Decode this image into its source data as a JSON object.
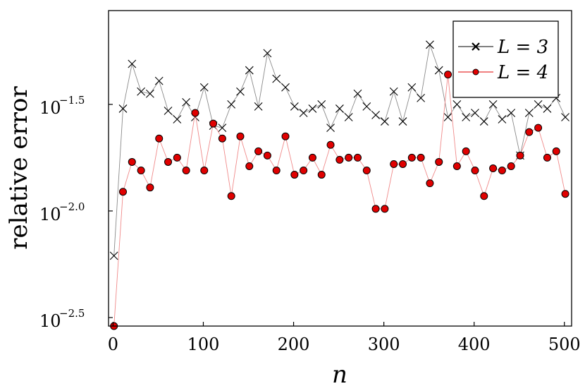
{
  "chart_data": {
    "type": "line",
    "xlabel": "n",
    "ylabel": "relative error",
    "xlim": [
      -5,
      508
    ],
    "ylim": [
      -2.54,
      -1.06
    ],
    "y_scale": "log10",
    "xticks": [
      0,
      100,
      200,
      300,
      400,
      500
    ],
    "yticks": [
      -2.5,
      -2.0,
      -1.5
    ],
    "ytick_base": "10",
    "ytick_exponents": [
      "−2.5",
      "−2.0",
      "−1.5"
    ],
    "grid": false,
    "legend_position": "top-right",
    "x": [
      1,
      11,
      21,
      31,
      41,
      51,
      61,
      71,
      81,
      91,
      101,
      111,
      121,
      131,
      141,
      151,
      161,
      171,
      181,
      191,
      201,
      211,
      221,
      231,
      241,
      251,
      261,
      271,
      281,
      291,
      301,
      311,
      321,
      331,
      341,
      351,
      361,
      371,
      381,
      391,
      401,
      411,
      421,
      431,
      441,
      451,
      461,
      471,
      481,
      491,
      501
    ],
    "series": [
      {
        "name": "L = 3",
        "marker": "x",
        "color": "#000000",
        "line_color": "#8a8a8a",
        "values": [
          -2.21,
          -1.52,
          -1.31,
          -1.44,
          -1.45,
          -1.39,
          -1.53,
          -1.57,
          -1.49,
          -1.56,
          -1.42,
          -1.6,
          -1.61,
          -1.5,
          -1.44,
          -1.34,
          -1.51,
          -1.26,
          -1.38,
          -1.42,
          -1.51,
          -1.54,
          -1.52,
          -1.5,
          -1.61,
          -1.52,
          -1.56,
          -1.45,
          -1.51,
          -1.55,
          -1.58,
          -1.44,
          -1.58,
          -1.42,
          -1.47,
          -1.22,
          -1.34,
          -1.56,
          -1.5,
          -1.56,
          -1.54,
          -1.58,
          -1.5,
          -1.57,
          -1.54,
          -1.74,
          -1.54,
          -1.5,
          -1.52,
          -1.47,
          -1.56
        ]
      },
      {
        "name": "L = 4",
        "marker": "o",
        "color": "#e00000",
        "line_color": "#f08a8a",
        "values": [
          -2.54,
          -1.91,
          -1.77,
          -1.81,
          -1.89,
          -1.66,
          -1.77,
          -1.75,
          -1.81,
          -1.54,
          -1.81,
          -1.59,
          -1.66,
          -1.93,
          -1.65,
          -1.79,
          -1.72,
          -1.74,
          -1.81,
          -1.65,
          -1.83,
          -1.81,
          -1.75,
          -1.83,
          -1.69,
          -1.76,
          -1.75,
          -1.75,
          -1.81,
          -1.99,
          -1.99,
          -1.78,
          -1.78,
          -1.75,
          -1.75,
          -1.87,
          -1.77,
          -1.36,
          -1.79,
          -1.72,
          -1.81,
          -1.93,
          -1.8,
          -1.81,
          -1.79,
          -1.74,
          -1.63,
          -1.61,
          -1.75,
          -1.72,
          -1.92
        ]
      }
    ]
  }
}
